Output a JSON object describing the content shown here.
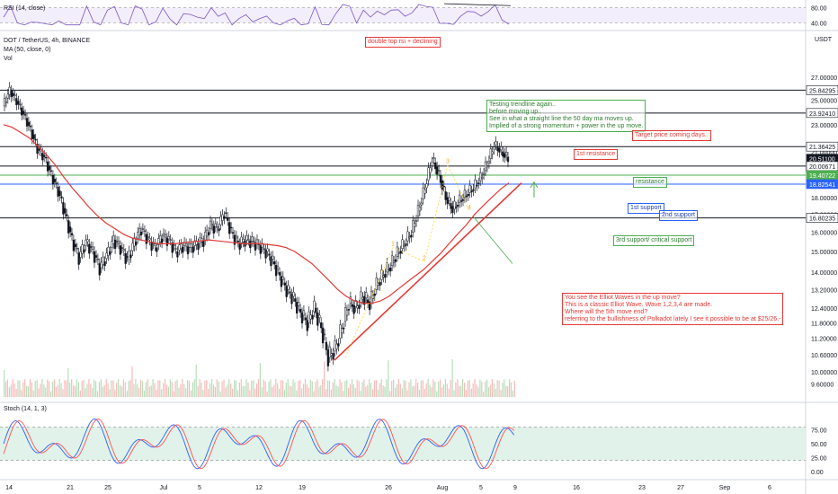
{
  "header": {
    "symbol": "DOT / TetherUS, 4h, BINANCE",
    "ma": "MA (50, close, 0)",
    "vol": "Vol",
    "rsi": "RSI (14, close)",
    "stoch": "Stoch (14, 1, 3)",
    "currency": "USDT"
  },
  "annotations": {
    "double_top": "double top rsi + declining",
    "testing": "Testing trendline again..\nbefore moving up..\nSee in what a straight line the 50 day ma moves up.\nImplied of a strong momentum + power in the up move.",
    "target": "Target price coming days..",
    "first_resistance": "1st resistance",
    "resistance": "resistance",
    "first_support": "1st support",
    "second_support": "2nd support",
    "third_support": "3rd support/ critical support",
    "elliott": "You see the Elliot Waves in the up move?\nThis is a classic Elliot Wave. Wave 1,2,3,4 are made.\nWhere will the 5th move end?\nreferring to the bullishness of Polkadot lately I see it possible to be at $25/26.-"
  },
  "chart_data": [
    {
      "type": "line",
      "title": "RSI (14, close)",
      "y_ticks": [
        80.0,
        40.0
      ],
      "ylim": [
        25,
        95
      ]
    },
    {
      "type": "candlestick",
      "title": "DOT / TetherUS, 4h, BINANCE",
      "ylabel": "USDT",
      "y_axis_type": "log",
      "ylim": [
        9.3,
        28.5
      ],
      "y_ticks": [
        27.0,
        25.0,
        23.0,
        21.0,
        19.0,
        18.0,
        17.0,
        16.0,
        15.0,
        14.0,
        13.2,
        12.4,
        11.8,
        11.2,
        10.6,
        10.0,
        9.6
      ],
      "x_ticks": [
        "14",
        "21",
        "25",
        "Jul",
        "5",
        "12",
        "19",
        "26",
        "Aug",
        "5",
        "9",
        "16",
        "23",
        "27",
        "Sep",
        "6"
      ],
      "price_labels": [
        {
          "value": "25.84295",
          "color": "#131722"
        },
        {
          "value": "23.92410",
          "color": "#131722"
        },
        {
          "value": "21.36425",
          "color": "#131722"
        },
        {
          "value": "20.51100",
          "color": "#ffffff"
        },
        {
          "value": "02:37:31",
          "color": "#ffffff"
        },
        {
          "value": "20.00671",
          "color": "#131722"
        },
        {
          "value": "19.40722",
          "color": "#4caf50"
        },
        {
          "value": "18.82541",
          "color": "#2962ff"
        },
        {
          "value": "16.80235",
          "color": "#131722"
        }
      ],
      "horizontal_levels": [
        25.84295,
        23.9241,
        21.36425,
        20.00671,
        19.40722,
        18.82541,
        16.80235
      ],
      "close_series": [
        24.5,
        25.8,
        24.9,
        23.8,
        22.6,
        21.2,
        20.6,
        19.4,
        18.4,
        17.0,
        15.6,
        14.7,
        15.5,
        15.0,
        14.2,
        14.8,
        15.6,
        15.2,
        14.6,
        15.5,
        16.2,
        15.6,
        15.2,
        15.8,
        15.6,
        15.0,
        15.3,
        15.2,
        15.4,
        15.6,
        16.4,
        16.2,
        17.1,
        16.0,
        15.4,
        15.6,
        15.5,
        15.3,
        15.0,
        14.5,
        13.8,
        13.2,
        12.8,
        12.2,
        11.8,
        12.4,
        11.6,
        10.5,
        10.8,
        11.6,
        12.6,
        12.4,
        12.9,
        12.6,
        13.4,
        13.9,
        14.3,
        14.9,
        15.4,
        16.0,
        17.2,
        18.6,
        20.5,
        19.4,
        18.0,
        17.3,
        17.8,
        18.2,
        18.6,
        19.2,
        20.2,
        21.5,
        21.0,
        20.5
      ],
      "ma50_series": [
        23.0,
        22.8,
        22.4,
        22.0,
        21.4,
        20.8,
        20.1,
        19.3,
        18.6,
        18.0,
        17.4,
        16.9,
        16.5,
        16.2,
        15.9,
        15.7,
        15.6,
        15.5,
        15.4,
        15.4,
        15.4,
        15.45,
        15.5,
        15.55,
        15.6,
        15.55,
        15.5,
        15.45,
        15.4,
        15.4,
        15.4,
        15.35,
        15.3,
        15.2,
        15.0,
        14.7,
        14.4,
        14.0,
        13.6,
        13.2,
        12.9,
        12.7,
        12.6,
        12.6,
        12.7,
        12.9,
        13.2,
        13.5,
        13.8,
        14.1,
        14.5,
        14.9,
        15.4,
        15.9,
        16.4,
        17.0,
        17.5,
        18.0,
        18.5,
        18.9
      ],
      "trendline": [
        [
          10.4,
          18.9
        ]
      ],
      "wave_labels": [
        "1",
        "2",
        "3",
        "4"
      ]
    },
    {
      "type": "line",
      "title": "Stoch (14, 1, 3)",
      "y_ticks": [
        75.0,
        50.0,
        25.0,
        0.0
      ],
      "ylim": [
        -8,
        105
      ],
      "series_colors": [
        "#2962ff",
        "#ff5252"
      ]
    }
  ],
  "colors": {
    "ma": "#e53935",
    "trendline": "#e53935",
    "up_candle": "#131722",
    "down_candle": "#ffffff",
    "green": "#4caf50",
    "blue": "#2962ff",
    "stoch_band": "#e0f2ea",
    "volume_up": "#f7a9a7",
    "volume_down": "#a5d6a7"
  }
}
